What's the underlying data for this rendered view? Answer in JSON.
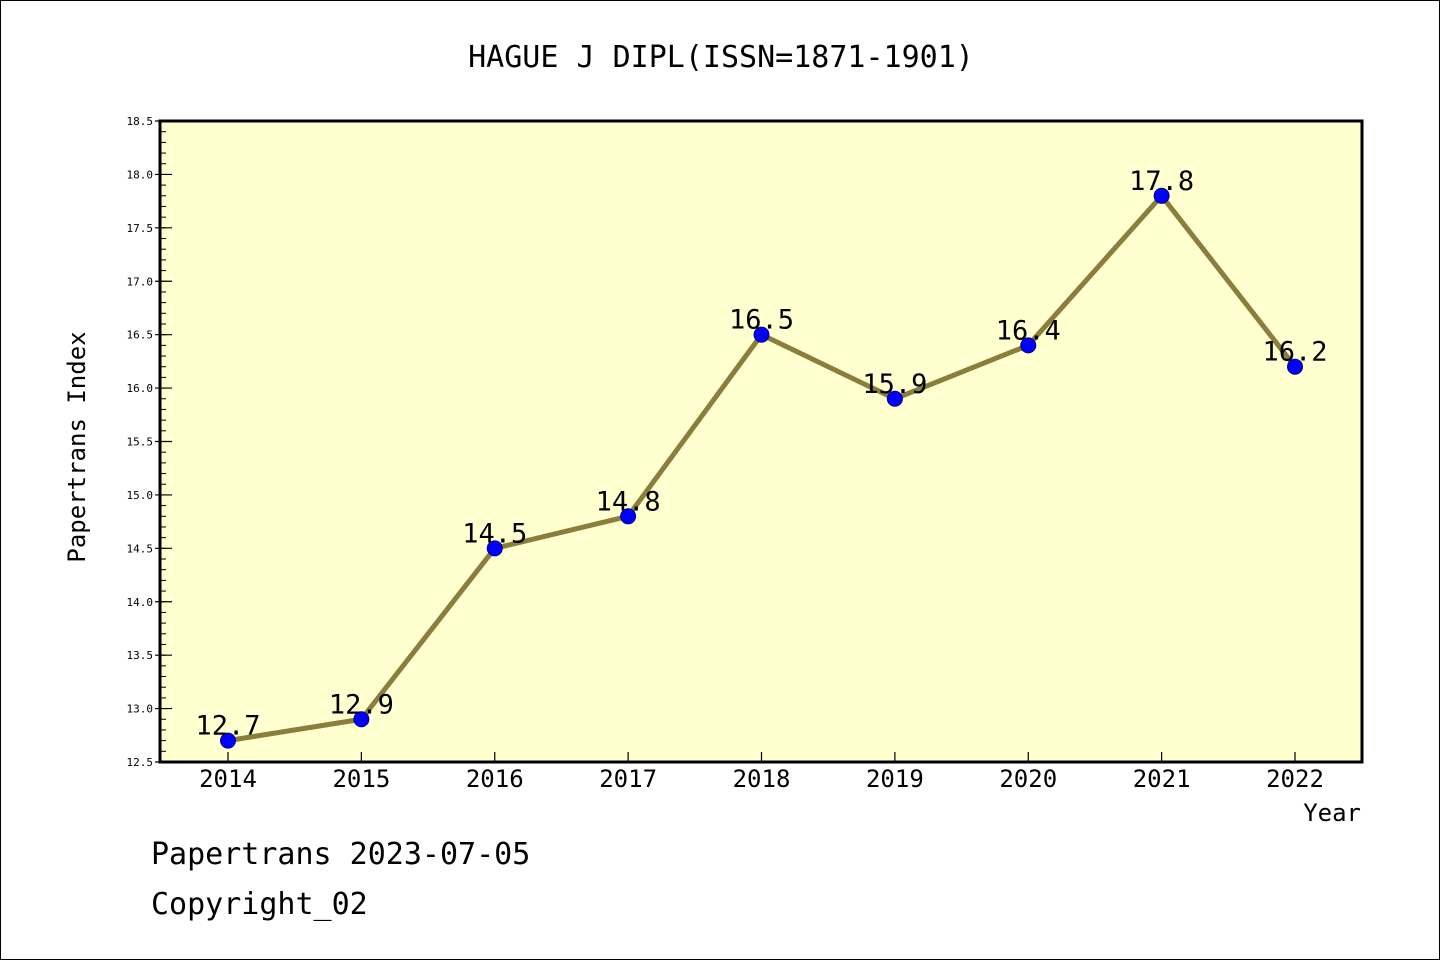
{
  "chart_data": {
    "type": "line",
    "title": "HAGUE J DIPL(ISSN=1871-1901)",
    "xlabel": "Year",
    "ylabel": "Papertrans Index",
    "categories": [
      "2014",
      "2015",
      "2016",
      "2017",
      "2018",
      "2019",
      "2020",
      "2021",
      "2022"
    ],
    "series": [
      {
        "values": [
          12.7,
          12.9,
          14.5,
          14.8,
          16.5,
          15.9,
          16.4,
          17.8,
          16.2
        ],
        "data_labels": [
          "12.7",
          "12.9",
          "14.5",
          "14.8",
          "16.5",
          "15.9",
          "16.4",
          "17.8",
          "16.2"
        ]
      }
    ],
    "ylim": [
      12.5,
      18.5
    ],
    "yticks": [
      "12.5",
      "13.0",
      "13.5",
      "14.0",
      "14.5",
      "15.0",
      "15.5",
      "16.0",
      "16.5",
      "17.0",
      "17.5",
      "18.0",
      "18.5"
    ],
    "grid": false,
    "legend": "none",
    "colors": {
      "plot_background": "#ffffd0",
      "line": "#8b7d3a",
      "marker": "#0000ff"
    }
  },
  "footer": {
    "line1": "Papertrans 2023-07-05",
    "line2": "Copyright_02"
  }
}
